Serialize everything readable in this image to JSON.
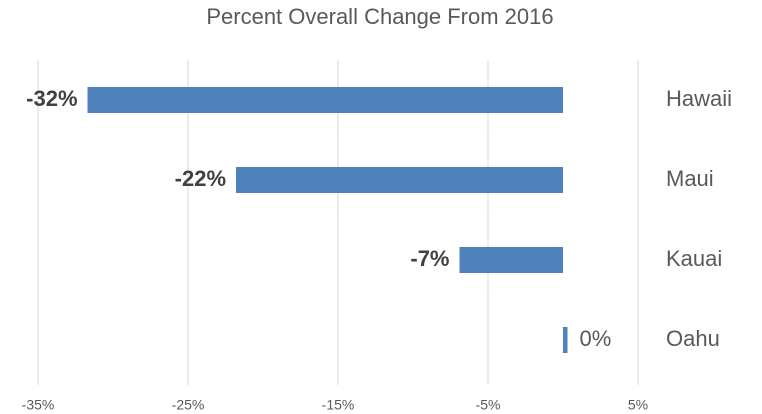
{
  "chart_data": {
    "type": "bar",
    "orientation": "horizontal",
    "title": "Percent Overall Change From 2016",
    "categories": [
      "Hawaii",
      "Maui",
      "Kauai",
      "Oahu"
    ],
    "values": [
      -31.7,
      -21.8,
      -6.9,
      0.3
    ],
    "value_labels": [
      "-32%",
      "-22%",
      "-7%",
      "0%"
    ],
    "color": "#4f81bd",
    "xlim": [
      -35,
      5
    ],
    "xticks": [
      {
        "value": -35,
        "label": "-35%"
      },
      {
        "value": -25,
        "label": "-25%"
      },
      {
        "value": -15,
        "label": "-15%"
      },
      {
        "value": -5,
        "label": "-5%"
      },
      {
        "value": 5,
        "label": "5%"
      }
    ],
    "grid": true
  }
}
